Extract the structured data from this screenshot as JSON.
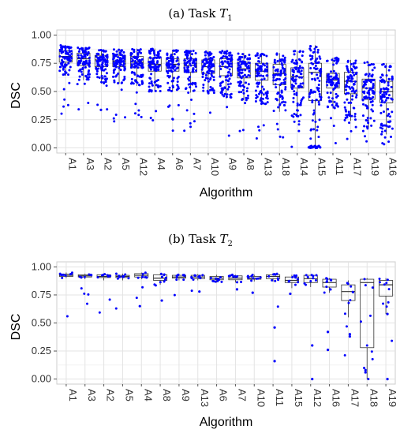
{
  "chart_data": [
    {
      "type": "box",
      "title": "(a) Task ",
      "title_symbol": "T",
      "title_sub": "1",
      "xlabel": "Algorithm",
      "ylabel": "DSC",
      "ylim": [
        0,
        1
      ],
      "yticks": [
        "0.00",
        "0.25",
        "0.50",
        "0.75",
        "1.00"
      ],
      "grid": true,
      "point_color": "#0000ff",
      "categories": [
        "A1",
        "A3",
        "A2",
        "A5",
        "A12",
        "A4",
        "A6",
        "A7",
        "A10",
        "A9",
        "A8",
        "A13",
        "A18",
        "A14",
        "A15",
        "A11",
        "A17",
        "A19",
        "A16"
      ],
      "series": [
        {
          "q1": 0.76,
          "median": 0.81,
          "q3": 0.86,
          "wlo": 0.64,
          "whi": 0.91
        },
        {
          "q1": 0.73,
          "median": 0.79,
          "q3": 0.84,
          "wlo": 0.6,
          "whi": 0.89
        },
        {
          "q1": 0.72,
          "median": 0.78,
          "q3": 0.82,
          "wlo": 0.57,
          "whi": 0.87
        },
        {
          "q1": 0.72,
          "median": 0.77,
          "q3": 0.82,
          "wlo": 0.57,
          "whi": 0.88
        },
        {
          "q1": 0.71,
          "median": 0.76,
          "q3": 0.81,
          "wlo": 0.55,
          "whi": 0.88
        },
        {
          "q1": 0.68,
          "median": 0.74,
          "q3": 0.8,
          "wlo": 0.5,
          "whi": 0.88
        },
        {
          "q1": 0.68,
          "median": 0.74,
          "q3": 0.79,
          "wlo": 0.5,
          "whi": 0.87
        },
        {
          "q1": 0.67,
          "median": 0.73,
          "q3": 0.79,
          "wlo": 0.49,
          "whi": 0.86
        },
        {
          "q1": 0.66,
          "median": 0.72,
          "q3": 0.78,
          "wlo": 0.48,
          "whi": 0.86
        },
        {
          "q1": 0.64,
          "median": 0.72,
          "q3": 0.79,
          "wlo": 0.44,
          "whi": 0.86
        },
        {
          "q1": 0.62,
          "median": 0.7,
          "q3": 0.76,
          "wlo": 0.42,
          "whi": 0.84
        },
        {
          "q1": 0.6,
          "median": 0.68,
          "q3": 0.75,
          "wlo": 0.38,
          "whi": 0.84
        },
        {
          "q1": 0.56,
          "median": 0.66,
          "q3": 0.74,
          "wlo": 0.32,
          "whi": 0.84
        },
        {
          "q1": 0.53,
          "median": 0.63,
          "q3": 0.71,
          "wlo": 0.28,
          "whi": 0.86
        },
        {
          "q1": 0.42,
          "median": 0.67,
          "q3": 0.75,
          "wlo": 0.0,
          "whi": 0.91
        },
        {
          "q1": 0.53,
          "median": 0.6,
          "q3": 0.66,
          "wlo": 0.35,
          "whi": 0.8
        },
        {
          "q1": 0.48,
          "median": 0.59,
          "q3": 0.67,
          "wlo": 0.24,
          "whi": 0.78
        },
        {
          "q1": 0.43,
          "median": 0.53,
          "q3": 0.61,
          "wlo": 0.18,
          "whi": 0.76
        },
        {
          "q1": 0.4,
          "median": 0.5,
          "q3": 0.59,
          "wlo": 0.12,
          "whi": 0.75
        }
      ]
    },
    {
      "type": "box",
      "title": "(b) Task ",
      "title_symbol": "T",
      "title_sub": "2",
      "xlabel": "Algorithm",
      "ylabel": "DSC",
      "ylim": [
        0,
        1
      ],
      "yticks": [
        "0.00",
        "0.25",
        "0.50",
        "0.75",
        "1.00"
      ],
      "grid": true,
      "point_color": "#0000ff",
      "categories": [
        "A1",
        "A3",
        "A2",
        "A5",
        "A4",
        "A8",
        "A9",
        "A13",
        "A6",
        "A7",
        "A10",
        "A11",
        "A15",
        "A12",
        "A16",
        "A17",
        "A18",
        "A19"
      ],
      "series": [
        {
          "q1": 0.915,
          "median": 0.925,
          "q3": 0.935,
          "wlo": 0.9,
          "whi": 0.95
        },
        {
          "q1": 0.91,
          "median": 0.92,
          "q3": 0.93,
          "wlo": 0.89,
          "whi": 0.94
        },
        {
          "q1": 0.905,
          "median": 0.915,
          "q3": 0.93,
          "wlo": 0.88,
          "whi": 0.94
        },
        {
          "q1": 0.905,
          "median": 0.915,
          "q3": 0.925,
          "wlo": 0.88,
          "whi": 0.94
        },
        {
          "q1": 0.91,
          "median": 0.925,
          "q3": 0.94,
          "wlo": 0.89,
          "whi": 0.95
        },
        {
          "q1": 0.88,
          "median": 0.9,
          "q3": 0.93,
          "wlo": 0.84,
          "whi": 0.94
        },
        {
          "q1": 0.9,
          "median": 0.91,
          "q3": 0.925,
          "wlo": 0.88,
          "whi": 0.935
        },
        {
          "q1": 0.895,
          "median": 0.91,
          "q3": 0.925,
          "wlo": 0.88,
          "whi": 0.935
        },
        {
          "q1": 0.885,
          "median": 0.9,
          "q3": 0.915,
          "wlo": 0.86,
          "whi": 0.93
        },
        {
          "q1": 0.885,
          "median": 0.9,
          "q3": 0.92,
          "wlo": 0.86,
          "whi": 0.93
        },
        {
          "q1": 0.89,
          "median": 0.9,
          "q3": 0.915,
          "wlo": 0.87,
          "whi": 0.93
        },
        {
          "q1": 0.895,
          "median": 0.915,
          "q3": 0.93,
          "wlo": 0.87,
          "whi": 0.94
        },
        {
          "q1": 0.86,
          "median": 0.88,
          "q3": 0.91,
          "wlo": 0.81,
          "whi": 0.93
        },
        {
          "q1": 0.86,
          "median": 0.895,
          "q3": 0.925,
          "wlo": 0.82,
          "whi": 0.93
        },
        {
          "q1": 0.82,
          "median": 0.86,
          "q3": 0.89,
          "wlo": 0.77,
          "whi": 0.9
        },
        {
          "q1": 0.7,
          "median": 0.78,
          "q3": 0.84,
          "wlo": 0.55,
          "whi": 0.88
        },
        {
          "q1": 0.28,
          "median": 0.86,
          "q3": 0.89,
          "wlo": 0.0,
          "whi": 0.9
        },
        {
          "q1": 0.74,
          "median": 0.84,
          "q3": 0.88,
          "wlo": 0.58,
          "whi": 0.9
        }
      ]
    }
  ]
}
